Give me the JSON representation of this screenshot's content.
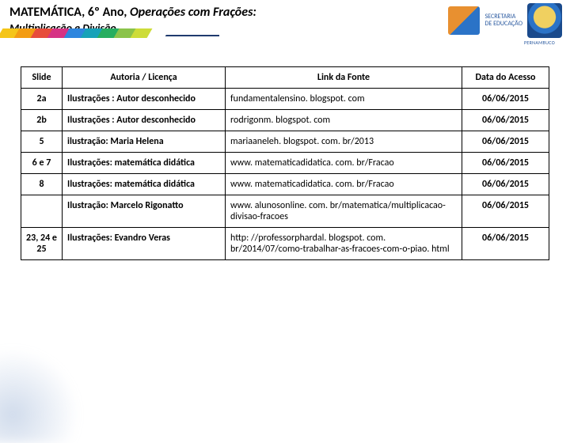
{
  "header": {
    "line1_prefix": "MATEMÁTICA, 6º Ano, ",
    "line1_italic": "Operações com Frações:",
    "line2": "Multiplicação e Divisão",
    "chevron_colors": [
      "#f5c518",
      "#f39c12",
      "#e74c3c",
      "#d63384",
      "#2e86de",
      "#17a2b8",
      "#27ae60",
      "#8bc34a",
      "#cddc39",
      "#ffffff"
    ],
    "logo_text_line1": "SECRETARIA",
    "logo_text_line2": "DE EDUCAÇÃO"
  },
  "table": {
    "columns": [
      "Slide",
      "Autoria / Licença",
      "Link da Fonte",
      "Data do Acesso"
    ],
    "rows": [
      {
        "slide": "2a",
        "autoria": "Ilustrações : Autor desconhecido",
        "link": "fundamentalensino. blogspot. com",
        "data": "06/06/2015"
      },
      {
        "slide": "2b",
        "autoria": "Ilustrações : Autor desconhecido",
        "link": "rodrigonm. blogspot. com",
        "data": "06/06/2015"
      },
      {
        "slide": "5",
        "autoria": "ilustração: Maria Helena",
        "link": "mariaaneleh. blogspot. com. br/2013",
        "data": "06/06/2015"
      },
      {
        "slide": "6 e 7",
        "autoria": "Ilustrações: matemática didática",
        "link": "www. matematicadidatica. com. br/Fracao",
        "data": "06/06/2015"
      },
      {
        "slide": "8",
        "autoria": "Ilustrações: matemática didática",
        "link": "www. matematicadidatica. com. br/Fracao",
        "data": "06/06/2015"
      },
      {
        "slide": "",
        "autoria": "Ilustração: Marcelo Rigonatto",
        "link": "www. alunosonline. com. br/matematica/multiplicacao-divisao-fracoes",
        "data": "06/06/2015"
      },
      {
        "slide": "23, 24 e 25",
        "autoria": "Ilustrações: Evandro Veras",
        "link": "http: //professorphardal. blogspot. com. br/2014/07/como-trabalhar-as-fracoes-com-o-piao. html",
        "data": "06/06/2015"
      }
    ]
  },
  "style": {
    "underline_color": "#1f3a6e",
    "background": "#ffffff",
    "border_color": "#000000",
    "font": "Calibri",
    "title_fontsize": 16,
    "table_fontsize": 12
  }
}
